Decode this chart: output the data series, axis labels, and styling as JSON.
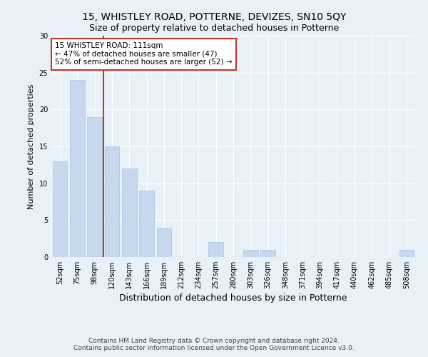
{
  "title": "15, WHISTLEY ROAD, POTTERNE, DEVIZES, SN10 5QY",
  "subtitle": "Size of property relative to detached houses in Potterne",
  "xlabel": "Distribution of detached houses by size in Potterne",
  "ylabel": "Number of detached properties",
  "categories": [
    "52sqm",
    "75sqm",
    "98sqm",
    "120sqm",
    "143sqm",
    "166sqm",
    "189sqm",
    "212sqm",
    "234sqm",
    "257sqm",
    "280sqm",
    "303sqm",
    "326sqm",
    "348sqm",
    "371sqm",
    "394sqm",
    "417sqm",
    "440sqm",
    "462sqm",
    "485sqm",
    "508sqm"
  ],
  "values": [
    13,
    24,
    19,
    15,
    12,
    9,
    4,
    0,
    0,
    2,
    0,
    1,
    1,
    0,
    0,
    0,
    0,
    0,
    0,
    0,
    1
  ],
  "bar_color": "#c5d8ed",
  "bar_edge_color": "#a8c4dc",
  "property_line_color": "#c0392b",
  "annotation_text": "15 WHISTLEY ROAD: 111sqm\n← 47% of detached houses are smaller (47)\n52% of semi-detached houses are larger (52) →",
  "annotation_box_color": "#ffffff",
  "annotation_box_edge": "#c0392b",
  "ylim": [
    0,
    30
  ],
  "yticks": [
    0,
    5,
    10,
    15,
    20,
    25,
    30
  ],
  "background_color": "#e8f0f8",
  "plot_bg_color": "#e8f0f8",
  "grid_color": "#ffffff",
  "footer": "Contains HM Land Registry data © Crown copyright and database right 2024.\nContains public sector information licensed under the Open Government Licence v3.0.",
  "title_fontsize": 10,
  "subtitle_fontsize": 9,
  "xlabel_fontsize": 9,
  "ylabel_fontsize": 8,
  "tick_fontsize": 7,
  "annotation_fontsize": 7.5,
  "footer_fontsize": 6.5
}
